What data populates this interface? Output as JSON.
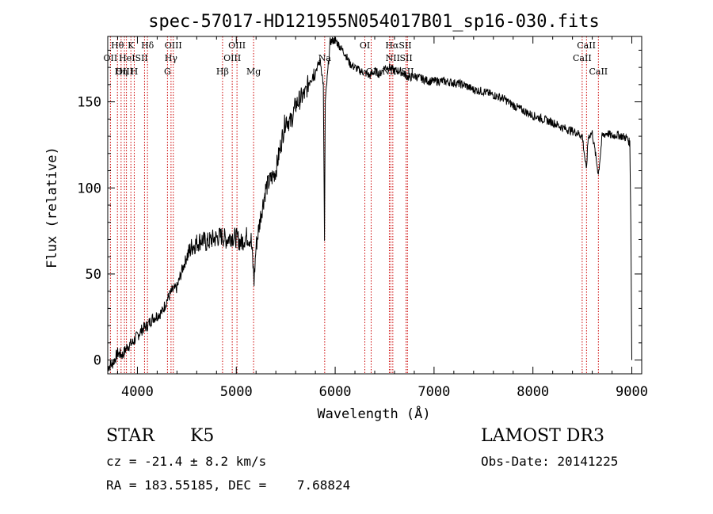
{
  "chart_data": {
    "type": "line",
    "title": "spec-57017-HD121955N054017B01_sp16-030.fits",
    "xlabel": "Wavelength (Å)",
    "ylabel": "Flux (relative)",
    "xlim": [
      3700,
      9100
    ],
    "ylim": [
      -8,
      188
    ],
    "x_ticks": [
      4000,
      5000,
      6000,
      7000,
      8000,
      9000
    ],
    "y_ticks": [
      0,
      50,
      100,
      150
    ],
    "grid": false,
    "line_color": "#000000",
    "marker_color": "#cc0000",
    "series": [
      {
        "x": [
          3700,
          3750,
          3800,
          3850,
          3900,
          3950,
          4000,
          4050,
          4100,
          4150,
          4200,
          4250,
          4300,
          4350,
          4400,
          4450,
          4500,
          4550,
          4600,
          4650,
          4700,
          4750,
          4800,
          4850,
          4900,
          4950,
          5000,
          5050,
          5100,
          5150,
          5180,
          5200,
          5250,
          5300,
          5350,
          5400,
          5450,
          5500,
          5550,
          5600,
          5650,
          5700,
          5750,
          5800,
          5850,
          5880,
          5892,
          5900,
          5950,
          6000,
          6050,
          6100,
          6150,
          6200,
          6250,
          6300,
          6350,
          6400,
          6450,
          6500,
          6550,
          6600,
          6650,
          6700,
          6750,
          6800,
          6850,
          6900,
          6950,
          7000,
          7100,
          7200,
          7300,
          7400,
          7500,
          7600,
          7700,
          7800,
          7900,
          8000,
          8100,
          8200,
          8300,
          8400,
          8450,
          8500,
          8540,
          8560,
          8600,
          8662,
          8700,
          8750,
          8800,
          8850,
          8900,
          8950,
          8980,
          8990,
          9000
        ],
        "y": [
          -4,
          -2,
          4,
          3,
          8,
          10,
          14,
          18,
          20,
          24,
          26,
          28,
          35,
          40,
          42,
          52,
          60,
          66,
          68,
          70,
          68,
          70,
          71,
          72,
          70,
          72,
          71,
          68,
          72,
          70,
          46,
          66,
          85,
          100,
          105,
          110,
          125,
          140,
          138,
          148,
          152,
          155,
          165,
          168,
          174,
          160,
          70,
          150,
          185,
          186,
          182,
          178,
          172,
          170,
          168,
          167,
          165,
          168,
          166,
          170,
          170,
          168,
          168,
          166,
          164,
          165,
          164,
          163,
          162,
          162,
          162,
          161,
          160,
          157,
          156,
          154,
          152,
          148,
          145,
          142,
          140,
          138,
          135,
          133,
          132,
          130,
          110,
          130,
          132,
          108,
          130,
          132,
          130,
          131,
          130,
          129,
          126,
          80,
          0
        ]
      }
    ],
    "lines": [
      {
        "label": "Hθ",
        "x": 3798
      },
      {
        "label": "OII",
        "x": 3727
      },
      {
        "label": "OIII",
        "x": 3869
      },
      {
        "label": "K",
        "x": 3934
      },
      {
        "label": "H",
        "x": 3968
      },
      {
        "label": "HeI",
        "x": 3889
      },
      {
        "label": "Hη",
        "x": 3835
      },
      {
        "label": "SII",
        "x": 4072
      },
      {
        "label": "Hδ",
        "x": 4102
      },
      {
        "label": "OIII",
        "x": 4363
      },
      {
        "label": "Hγ",
        "x": 4340
      },
      {
        "label": "G",
        "x": 4304
      },
      {
        "label": "Hβ",
        "x": 4861
      },
      {
        "label": "OIII",
        "x": 4959
      },
      {
        "label": "OIII",
        "x": 5007
      },
      {
        "label": "Mg",
        "x": 5175
      },
      {
        "label": "Na",
        "x": 5894
      },
      {
        "label": "OI",
        "x": 6300
      },
      {
        "label": "OI",
        "x": 6364
      },
      {
        "label": "NII",
        "x": 6548
      },
      {
        "label": "Hα",
        "x": 6563
      },
      {
        "label": "NII",
        "x": 6583
      },
      {
        "label": "SII",
        "x": 6717
      },
      {
        "label": "SII",
        "x": 6731
      },
      {
        "label": "CaII",
        "x": 8498
      },
      {
        "label": "CaII",
        "x": 8542
      },
      {
        "label": "CaII",
        "x": 8662
      }
    ],
    "line_labels": [
      {
        "text": "Hθ",
        "x": 3798,
        "row": 0
      },
      {
        "text": "K",
        "x": 3934,
        "row": 0
      },
      {
        "text": "Hδ",
        "x": 4102,
        "row": 0
      },
      {
        "text": "OIII",
        "x": 4363,
        "row": 0
      },
      {
        "text": "OIII",
        "x": 5007,
        "row": 0
      },
      {
        "text": "OI",
        "x": 6300,
        "row": 0
      },
      {
        "text": "HαSII",
        "x": 6640,
        "row": 0
      },
      {
        "text": "CaII",
        "x": 8540,
        "row": 0
      },
      {
        "text": "OII",
        "x": 3727,
        "row": 1
      },
      {
        "text": "HeISII",
        "x": 3960,
        "row": 1
      },
      {
        "text": "Hγ",
        "x": 4340,
        "row": 1
      },
      {
        "text": "OIII",
        "x": 4959,
        "row": 1
      },
      {
        "text": "Na",
        "x": 5894,
        "row": 1
      },
      {
        "text": "NII",
        "x": 6583,
        "row": 1
      },
      {
        "text": "SII",
        "x": 6717,
        "row": 1
      },
      {
        "text": "CaII",
        "x": 8498,
        "row": 1
      },
      {
        "text": "OIII",
        "x": 3869,
        "row": 2
      },
      {
        "text": "Hη",
        "x": 3835,
        "row": 2
      },
      {
        "text": "H",
        "x": 3968,
        "row": 2
      },
      {
        "text": "G",
        "x": 4304,
        "row": 2
      },
      {
        "text": "Hβ",
        "x": 4861,
        "row": 2
      },
      {
        "text": "Mg",
        "x": 5175,
        "row": 2
      },
      {
        "text": "OI",
        "x": 6364,
        "row": 2
      },
      {
        "text": "NII",
        "x": 6548,
        "row": 2
      },
      {
        "text": "SII",
        "x": 6731,
        "row": 2
      },
      {
        "text": "CaII",
        "x": 8662,
        "row": 2
      }
    ]
  },
  "info": {
    "object_class": "STAR",
    "subclass": "K5",
    "survey": "LAMOST DR3",
    "redshift": "cz = -21.4 ± 8.2 km/s",
    "obs_date": "Obs-Date: 20141225",
    "coords": "RA = 183.55185, DEC =    7.68824"
  }
}
